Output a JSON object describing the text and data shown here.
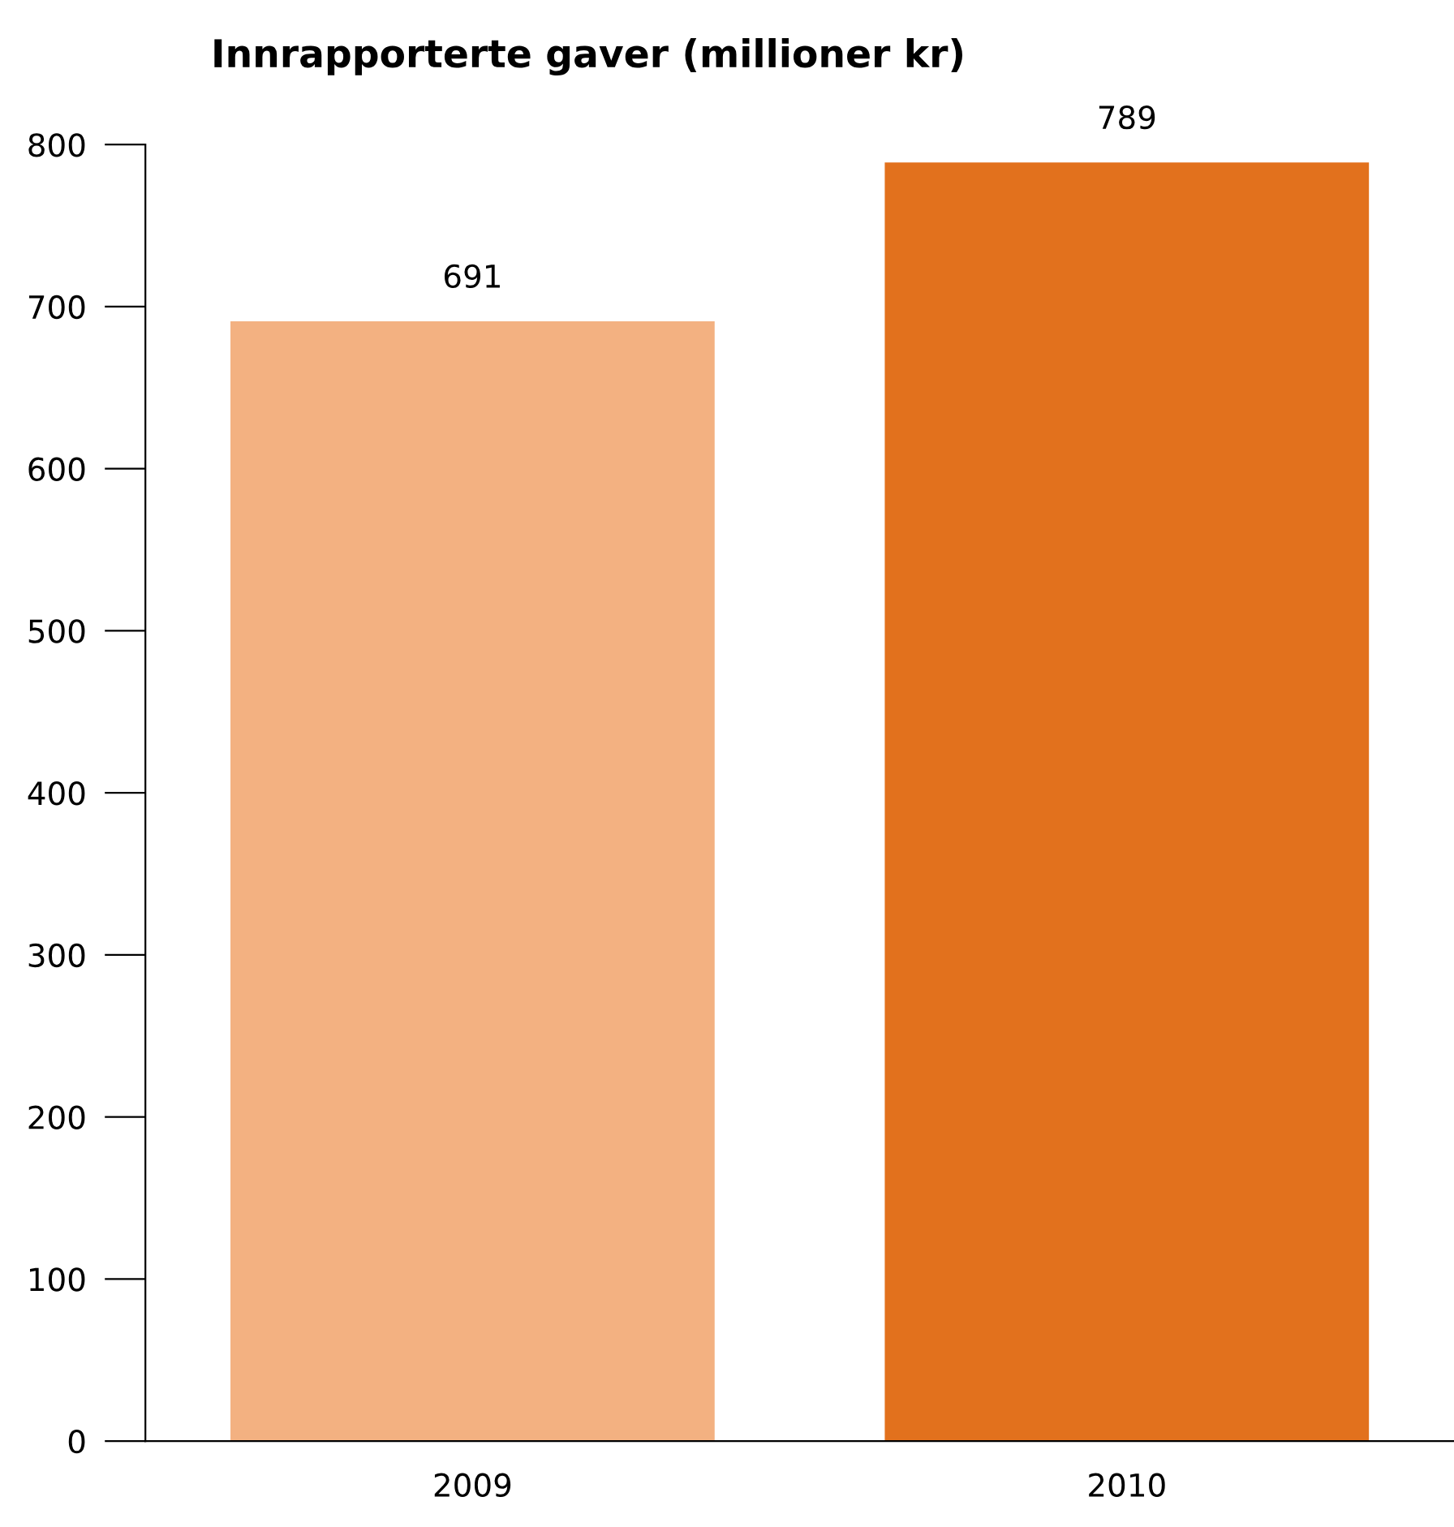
{
  "chart_data": {
    "type": "bar",
    "title": "Innrapporterte gaver (millioner kr)",
    "categories": [
      "2009",
      "2010"
    ],
    "values": [
      691,
      789
    ],
    "colors": [
      "#f3b181",
      "#e2711d"
    ],
    "ylim": [
      0,
      800
    ],
    "yticks": [
      0,
      100,
      200,
      300,
      400,
      500,
      600,
      700,
      800
    ],
    "data_labels": true,
    "grid": false,
    "legend": false
  }
}
